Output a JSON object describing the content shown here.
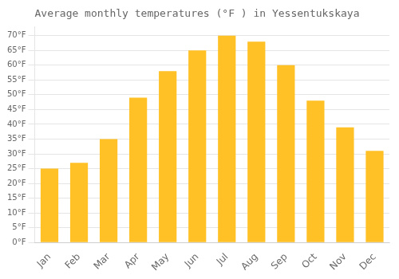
{
  "chart_data": {
    "type": "bar",
    "title": "Average monthly temperatures (°F ) in Yessentukskaya",
    "categories": [
      "Jan",
      "Feb",
      "Mar",
      "Apr",
      "May",
      "Jun",
      "Jul",
      "Aug",
      "Sep",
      "Oct",
      "Nov",
      "Dec"
    ],
    "values": [
      25,
      27,
      35,
      49,
      58,
      65,
      70,
      68,
      60,
      48,
      39,
      31
    ],
    "color": "#FFC125",
    "ylim": [
      0,
      73
    ],
    "yticks": [
      {
        "value": 0,
        "label": "0°F"
      },
      {
        "value": 5,
        "label": "5°F"
      },
      {
        "value": 10,
        "label": "10°F"
      },
      {
        "value": 15,
        "label": "15°F"
      },
      {
        "value": 20,
        "label": "20°F"
      },
      {
        "value": 25,
        "label": "25°F"
      },
      {
        "value": 30,
        "label": "30°F"
      },
      {
        "value": 35,
        "label": "35°F"
      },
      {
        "value": 40,
        "label": "40°F"
      },
      {
        "value": 45,
        "label": "45°F"
      },
      {
        "value": 50,
        "label": "50°F"
      },
      {
        "value": 55,
        "label": "55°F"
      },
      {
        "value": 60,
        "label": "60°F"
      },
      {
        "value": 65,
        "label": "65°F"
      },
      {
        "value": 70,
        "label": "70°F"
      }
    ],
    "grid": true
  }
}
